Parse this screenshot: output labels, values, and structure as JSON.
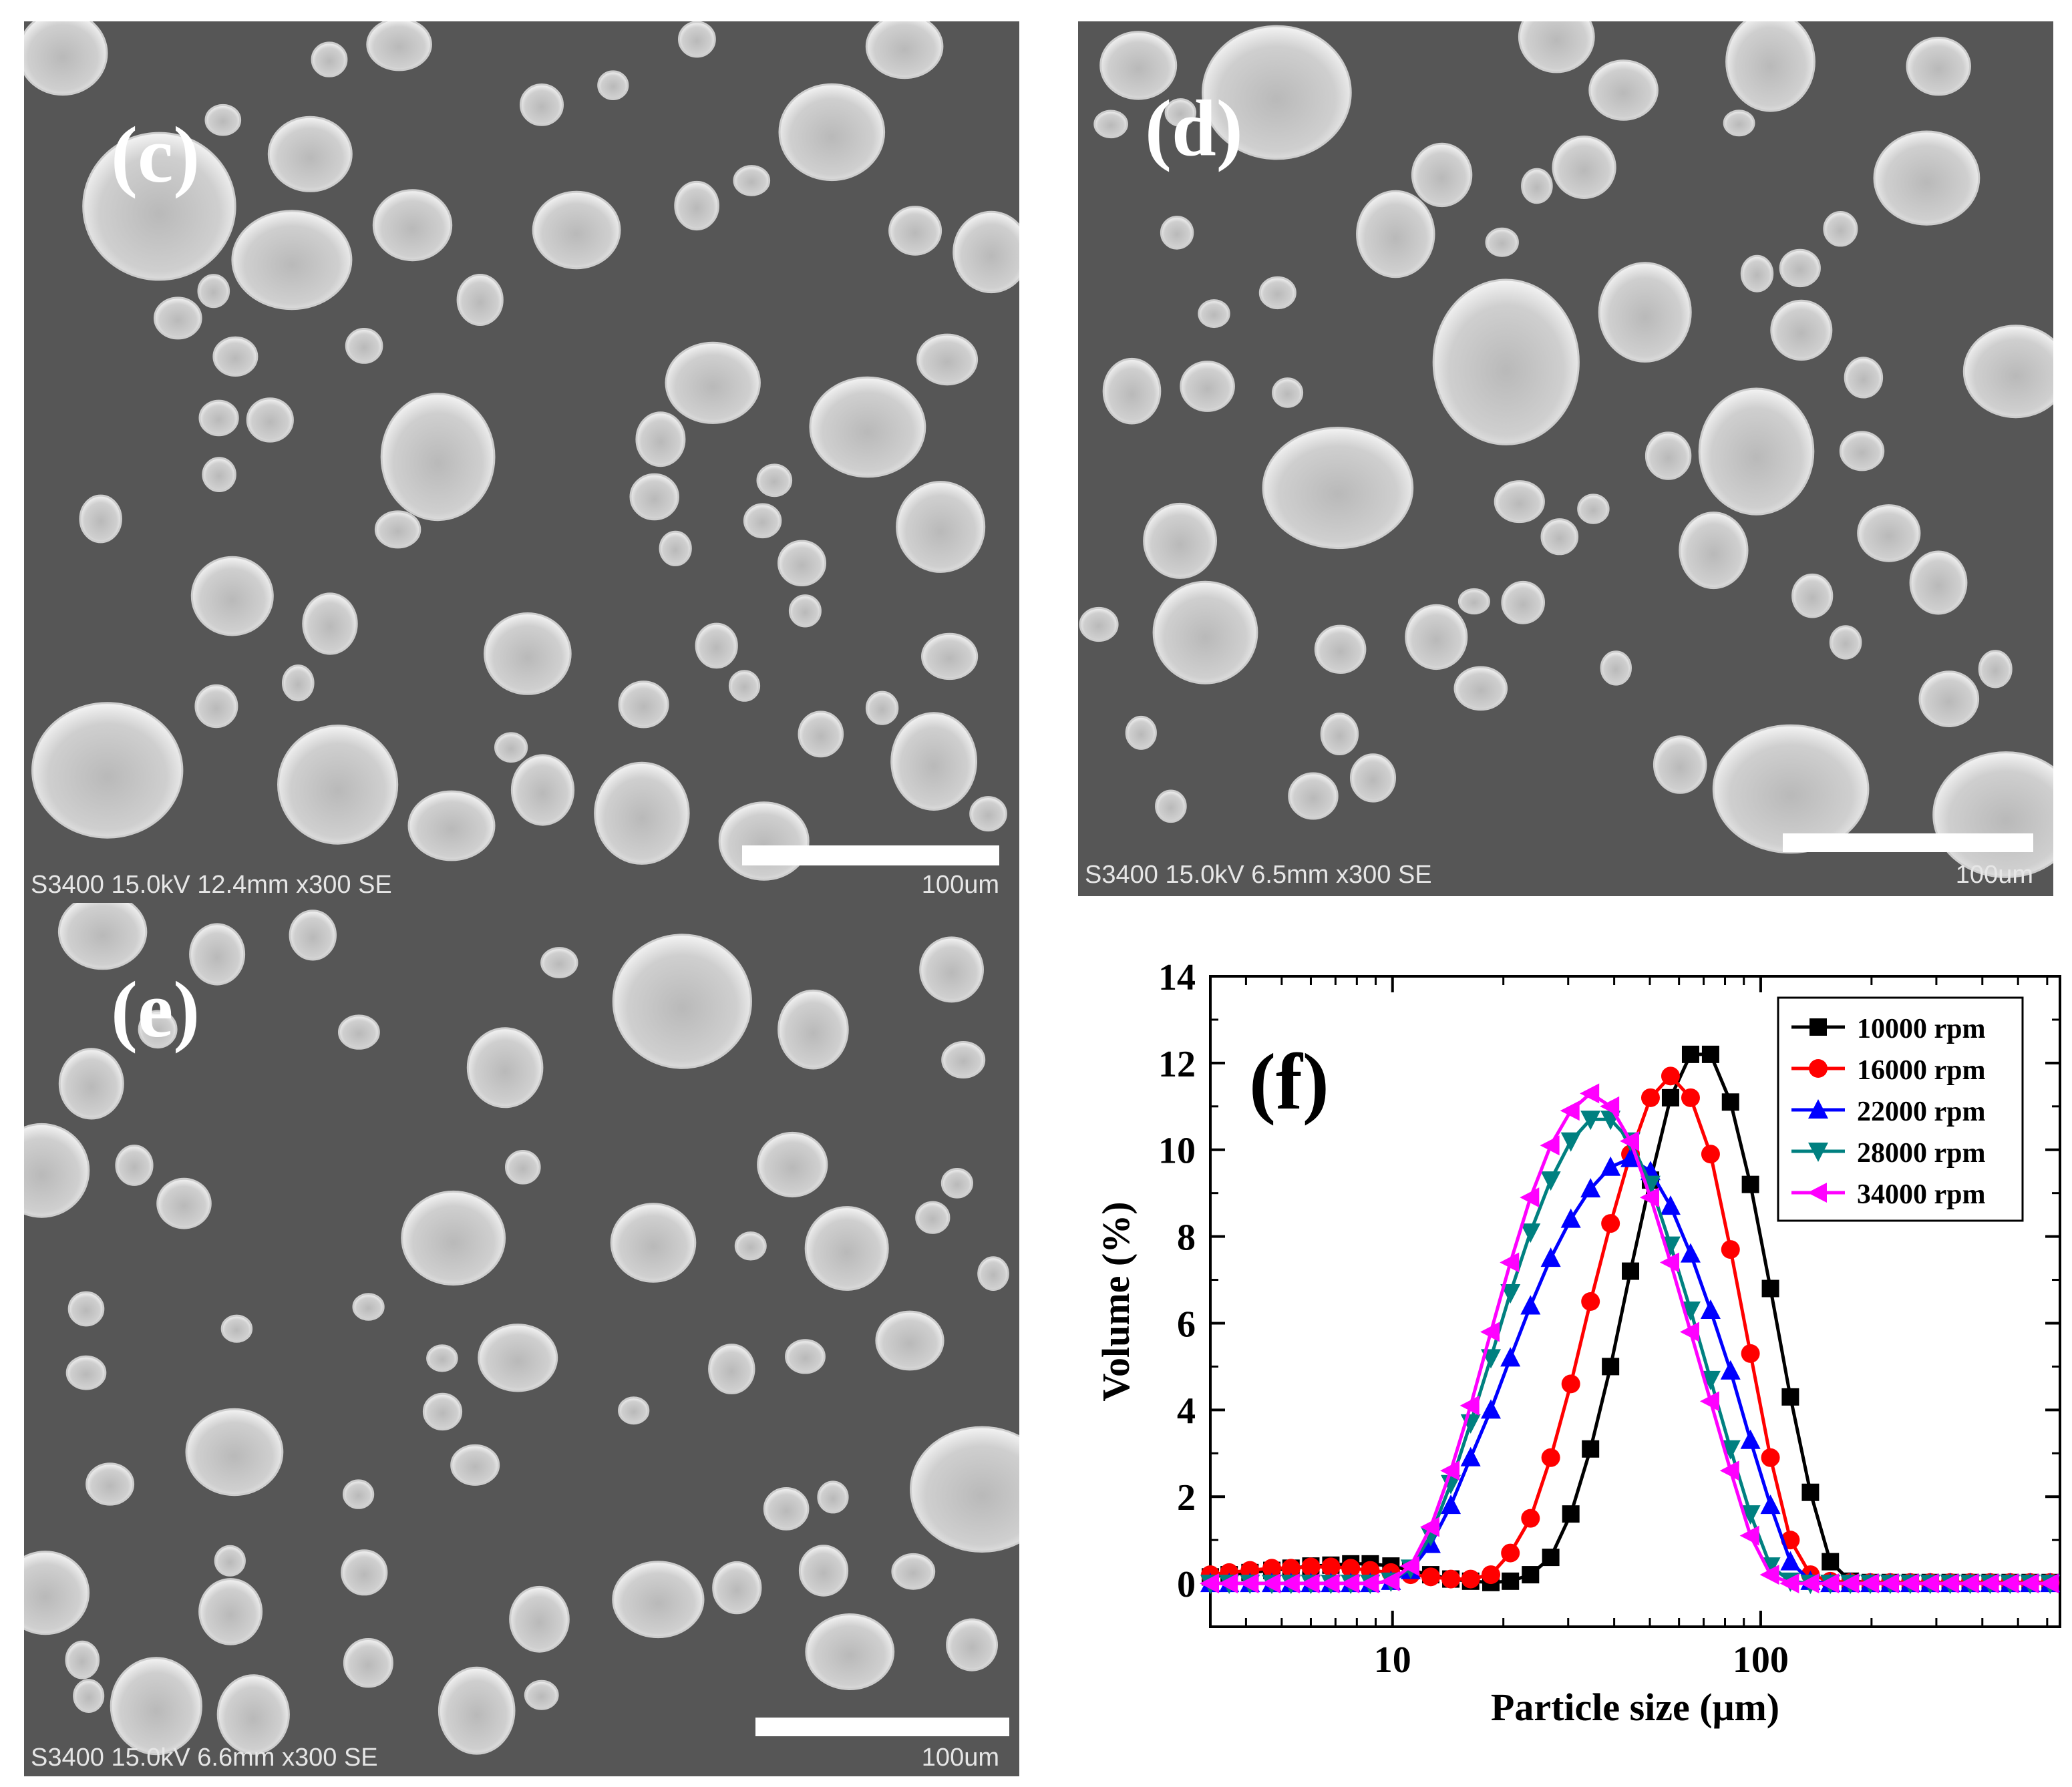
{
  "panels": [
    {
      "label": "(c)",
      "info": "S3400 15.0kV 12.4mm x300 SE",
      "scale_label": "100um"
    },
    {
      "label": "(d)",
      "info": "S3400 15.0kV 6.5mm x300 SE",
      "scale_label": "100um"
    },
    {
      "label": "(e)",
      "info": "S3400 15.0kV 6.6mm x300 SE",
      "scale_label": "100um"
    }
  ],
  "colors": {
    "sem_background": "#565656",
    "particle": "#cdcdcd"
  },
  "chart_data": {
    "type": "line",
    "panel_label": "(f)",
    "xlabel": "Particle size (μm)",
    "ylabel": "Volume (%)",
    "xscale": "log",
    "xlim": [
      3.2,
      650
    ],
    "ylim": [
      -1,
      14
    ],
    "x_ticks": [
      10,
      100
    ],
    "x_tick_labels": [
      "10",
      "100"
    ],
    "y_ticks": [
      0,
      2,
      4,
      6,
      8,
      10,
      12,
      14
    ],
    "y_tick_labels": [
      "0",
      "2",
      "4",
      "6",
      "8",
      "10",
      "12",
      "14"
    ],
    "legend_position": "top-right",
    "grid": false,
    "x": [
      3.2,
      3.6,
      4.1,
      4.7,
      5.3,
      6.0,
      6.8,
      7.7,
      8.7,
      9.9,
      11.2,
      12.7,
      14.4,
      16.3,
      18.5,
      20.9,
      23.7,
      26.9,
      30.5,
      34.5,
      39.1,
      44.3,
      50.2,
      56.9,
      64.5,
      73.1,
      82.8,
      93.8,
      106.3,
      120.4,
      136.5,
      154.6,
      175.2,
      198.5,
      224.9,
      254.9,
      288.8,
      327.2,
      370.8,
      420.1,
      476.0,
      539.4,
      611.3
    ],
    "series": [
      {
        "name": "10000 rpm",
        "color": "#000000",
        "marker": "square",
        "values": [
          0.15,
          0.2,
          0.25,
          0.3,
          0.35,
          0.4,
          0.42,
          0.45,
          0.45,
          0.4,
          0.3,
          0.2,
          0.1,
          0.05,
          0.02,
          0.05,
          0.2,
          0.6,
          1.6,
          3.1,
          5.0,
          7.2,
          9.3,
          11.2,
          12.2,
          12.2,
          11.1,
          9.2,
          6.8,
          4.3,
          2.1,
          0.5,
          0.05,
          0.02,
          0.02,
          0.02,
          0.02,
          0.02,
          0.02,
          0.02,
          0.02,
          0.02,
          0.02
        ]
      },
      {
        "name": "16000 rpm",
        "color": "#ff0000",
        "marker": "circle",
        "values": [
          0.2,
          0.25,
          0.3,
          0.35,
          0.35,
          0.38,
          0.38,
          0.35,
          0.3,
          0.25,
          0.2,
          0.15,
          0.1,
          0.1,
          0.2,
          0.7,
          1.5,
          2.9,
          4.6,
          6.5,
          8.3,
          9.9,
          11.2,
          11.7,
          11.2,
          9.9,
          7.7,
          5.3,
          2.9,
          1.0,
          0.2,
          0.05,
          0.02,
          0.02,
          0.02,
          0.02,
          0.02,
          0.02,
          0.02,
          0.02,
          0.02,
          0.02,
          0.02
        ]
      },
      {
        "name": "22000 rpm",
        "color": "#0000ff",
        "marker": "triangle-up",
        "values": [
          0.0,
          0.0,
          0.0,
          0.0,
          0.0,
          0.0,
          0.0,
          0.0,
          0.0,
          0.05,
          0.3,
          0.9,
          1.8,
          2.9,
          4.0,
          5.2,
          6.4,
          7.5,
          8.4,
          9.1,
          9.6,
          9.8,
          9.5,
          8.7,
          7.6,
          6.3,
          4.9,
          3.3,
          1.8,
          0.5,
          0.05,
          0.0,
          0.0,
          0.0,
          0.0,
          0.0,
          0.0,
          0.0,
          0.0,
          0.0,
          0.0,
          0.0,
          0.0
        ]
      },
      {
        "name": "28000 rpm",
        "color": "#008080",
        "marker": "triangle-down",
        "values": [
          0.0,
          0.0,
          0.0,
          0.0,
          0.0,
          0.0,
          0.0,
          0.0,
          0.0,
          0.05,
          0.35,
          1.1,
          2.3,
          3.7,
          5.2,
          6.7,
          8.1,
          9.3,
          10.2,
          10.7,
          10.7,
          10.2,
          9.2,
          7.8,
          6.3,
          4.7,
          3.1,
          1.6,
          0.4,
          0.05,
          0.0,
          0.0,
          0.0,
          0.0,
          0.0,
          0.0,
          0.0,
          0.0,
          0.0,
          0.0,
          0.0,
          0.0,
          0.0
        ]
      },
      {
        "name": "34000 rpm",
        "color": "#ff00ff",
        "marker": "triangle-left",
        "values": [
          0.0,
          0.0,
          0.0,
          0.0,
          0.0,
          0.0,
          0.0,
          0.0,
          0.0,
          0.05,
          0.4,
          1.3,
          2.6,
          4.1,
          5.8,
          7.4,
          8.9,
          10.1,
          10.9,
          11.3,
          11.0,
          10.2,
          8.9,
          7.4,
          5.8,
          4.2,
          2.6,
          1.1,
          0.2,
          0.0,
          0.0,
          0.0,
          0.0,
          0.0,
          0.0,
          0.0,
          0.0,
          0.0,
          0.0,
          0.0,
          0.0,
          0.0,
          0.0
        ]
      }
    ]
  }
}
